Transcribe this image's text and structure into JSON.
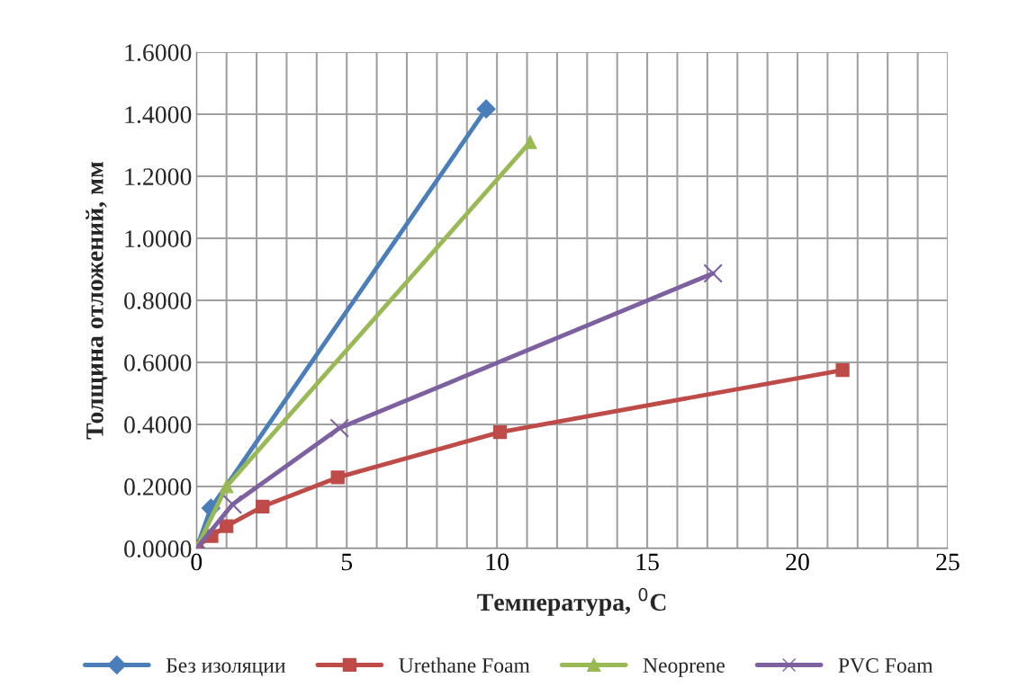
{
  "chart_data": {
    "type": "line",
    "xlabel": "Температура, $^{0}$C",
    "ylabel": "Толщина отложений, мм",
    "series": [
      {
        "name": "Без изоляции",
        "color": "#4a7ebb",
        "marker": "diamond",
        "x": [
          0,
          0.48,
          9.64
        ],
        "values": [
          0,
          0.13,
          1.417
        ]
      },
      {
        "name": "Urethane Foam",
        "color": "#be4b48",
        "marker": "square",
        "x": [
          0,
          0.5,
          1.0,
          2.2,
          4.7,
          10.1,
          21.5
        ],
        "values": [
          0.005,
          0.04,
          0.072,
          0.135,
          0.229,
          0.375,
          0.575
        ]
      },
      {
        "name": "Neoprene",
        "color": "#98b954",
        "marker": "triangle",
        "x": [
          0,
          1.0,
          11.1
        ],
        "values": [
          0,
          0.2,
          1.31
        ]
      },
      {
        "name": "PVC Foam",
        "color": "#7d60a0",
        "marker": "cross",
        "x": [
          0,
          1.2,
          4.76,
          17.19
        ],
        "values": [
          0,
          0.142,
          0.388,
          0.887
        ]
      }
    ],
    "xlim": [
      0,
      25
    ],
    "xticks": [
      0,
      {
        "value": 1,
        "label": null
      },
      {
        "value": 2,
        "label": null
      },
      {
        "value": 3,
        "label": null
      },
      {
        "value": 4,
        "label": null
      },
      5,
      {
        "value": 6,
        "label": null
      },
      {
        "value": 7,
        "label": null
      },
      {
        "value": 8,
        "label": null
      },
      {
        "value": 9,
        "label": null
      },
      10,
      {
        "value": 11,
        "label": null
      },
      {
        "value": 12,
        "label": null
      },
      {
        "value": 13,
        "label": null
      },
      {
        "value": 14,
        "label": null
      },
      15,
      {
        "value": 16,
        "label": null
      },
      {
        "value": 17,
        "label": null
      },
      {
        "value": 18,
        "label": null
      },
      {
        "value": 19,
        "label": null
      },
      20,
      {
        "value": 21,
        "label": null
      },
      {
        "value": 22,
        "label": null
      },
      {
        "value": 23,
        "label": null
      },
      {
        "value": 24,
        "label": null
      },
      25
    ],
    "ylim": [
      0,
      1.6
    ],
    "yticks": [
      {
        "value": 0,
        "label": "0.0000"
      },
      {
        "value": 0.2,
        "label": "0.2000"
      },
      {
        "value": 0.4,
        "label": "0.4000"
      },
      {
        "value": 0.6,
        "label": "0.6000"
      },
      {
        "value": 0.8,
        "label": "0.8000"
      },
      {
        "value": 1.0,
        "label": "1.0000"
      },
      {
        "value": 1.2,
        "label": "1.2000"
      },
      {
        "value": 1.4,
        "label": "1.4000"
      },
      {
        "value": 1.6,
        "label": "1.6000"
      }
    ],
    "grid": true,
    "legend": "bottom",
    "line_style": "solid"
  }
}
